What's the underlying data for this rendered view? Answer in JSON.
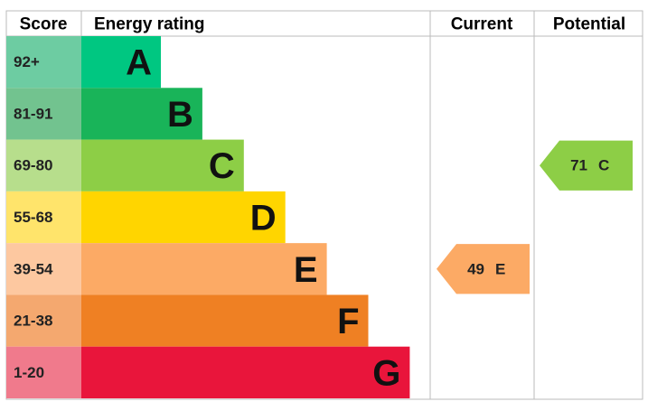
{
  "header": {
    "score": "Score",
    "rating": "Energy rating",
    "current": "Current",
    "potential": "Potential"
  },
  "bands": [
    {
      "range": "92+",
      "letter": "A",
      "color": "#00c781",
      "light": "#6dcca2"
    },
    {
      "range": "81-91",
      "letter": "B",
      "color": "#19b459",
      "light": "#72c38f"
    },
    {
      "range": "69-80",
      "letter": "C",
      "color": "#8dce46",
      "light": "#b7de8c"
    },
    {
      "range": "55-68",
      "letter": "D",
      "color": "#ffd500",
      "light": "#ffe46b"
    },
    {
      "range": "39-54",
      "letter": "E",
      "color": "#fcaa65",
      "light": "#fdc8a0"
    },
    {
      "range": "21-38",
      "letter": "F",
      "color": "#ef8023",
      "light": "#f4a86f"
    },
    {
      "range": "1-20",
      "letter": "G",
      "color": "#e9153b",
      "light": "#f07a8c"
    }
  ],
  "current": {
    "value": 49,
    "letter": "E"
  },
  "potential": {
    "value": 71,
    "letter": "C"
  }
}
